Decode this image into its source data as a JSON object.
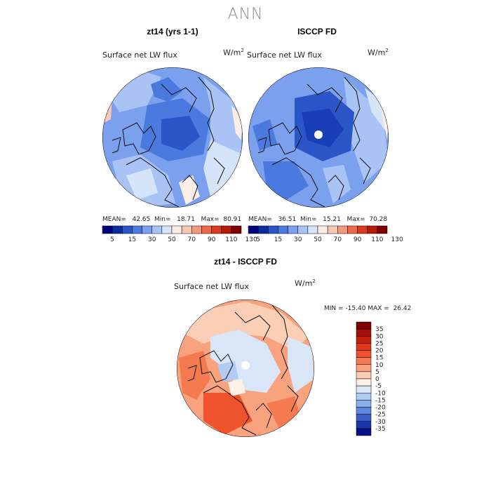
{
  "main_title": "ANN",
  "panels": [
    {
      "title": "zt14 (yrs 1-1)",
      "variable": "Surface net LW flux",
      "units": "W/m",
      "units_exp": "2",
      "mean_label": "MEAN=",
      "mean": "42.65",
      "min_label": "Min=",
      "min": "18.71",
      "max_label": "Max=",
      "max": "80.91"
    },
    {
      "title": "ISCCP FD",
      "variable": "Surface net LW flux",
      "units": "W/m",
      "units_exp": "2",
      "mean_label": "MEAN=",
      "mean": "36.51",
      "min_label": "Min=",
      "min": "15.21",
      "max_label": "Max=",
      "max": "70.28"
    }
  ],
  "diff_panel": {
    "title": "zt14 - ISCCP FD",
    "variable": "Surface net LW flux",
    "units": "W/m",
    "units_exp": "2",
    "min_label": "MIN =",
    "min": "-15.40",
    "max_label": "MAX =",
    "max": "26.42"
  },
  "chart_data": [
    {
      "type": "heatmap",
      "projection": "north polar stereographic",
      "title": "zt14 (yrs 1-1)",
      "field": "Surface net LW flux",
      "units": "W/m^2",
      "mean": 42.65,
      "min": 18.71,
      "max": 80.91,
      "colorbar_levels": [
        5,
        15,
        30,
        50,
        70,
        90,
        110,
        130
      ],
      "colorbar_colors": [
        "#00007f",
        "#0b2a9c",
        "#2a56c8",
        "#4a7ade",
        "#7aa0ee",
        "#a9c4f4",
        "#d6e4fa",
        "#fbeee6",
        "#f8c8b2",
        "#f49a7c",
        "#ec6a48",
        "#dc3a1e",
        "#b81a0a",
        "#7f0000"
      ]
    },
    {
      "type": "heatmap",
      "projection": "north polar stereographic",
      "title": "ISCCP FD",
      "field": "Surface net LW flux",
      "units": "W/m^2",
      "mean": 36.51,
      "min": 15.21,
      "max": 70.28,
      "colorbar_levels": [
        5,
        15,
        30,
        50,
        70,
        90,
        110,
        130
      ],
      "colorbar_colors": [
        "#00007f",
        "#0b2a9c",
        "#2a56c8",
        "#4a7ade",
        "#7aa0ee",
        "#a9c4f4",
        "#d6e4fa",
        "#fbeee6",
        "#f8c8b2",
        "#f49a7c",
        "#ec6a48",
        "#dc3a1e",
        "#b81a0a",
        "#7f0000"
      ]
    },
    {
      "type": "heatmap",
      "projection": "north polar stereographic",
      "title": "zt14 - ISCCP FD",
      "field": "Surface net LW flux",
      "units": "W/m^2",
      "min": -15.4,
      "max": 26.42,
      "colorbar_levels": [
        35,
        30,
        25,
        20,
        15,
        10,
        5,
        0,
        -5,
        -10,
        -15,
        -20,
        -25,
        -30,
        -35
      ],
      "colorbar_colors": [
        "#7f0000",
        "#a50f08",
        "#c41e0e",
        "#e0371a",
        "#f0532c",
        "#f67a50",
        "#f9a37e",
        "#fbcfb6",
        "#fdf0e6",
        "#d8e6f7",
        "#b1cbf2",
        "#8aaeeb",
        "#5f86de",
        "#3a5ec8",
        "#1c36a8",
        "#080f88"
      ]
    }
  ]
}
